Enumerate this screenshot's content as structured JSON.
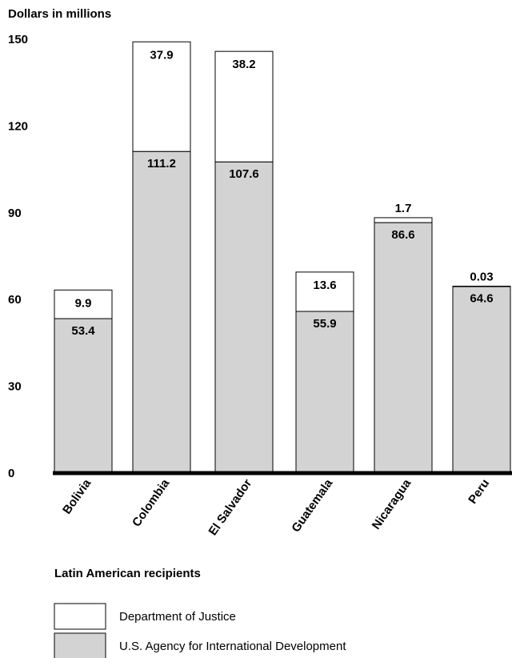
{
  "chart_data": {
    "type": "bar",
    "stacked": true,
    "ylabel": "Dollars in millions",
    "xlabel": "Latin American recipients",
    "ylim": [
      0,
      150
    ],
    "yticks": [
      0,
      30,
      60,
      90,
      120,
      150
    ],
    "categories": [
      "Bolivia",
      "Colombia",
      "El Salvador",
      "Guatemala",
      "Nicaragua",
      "Peru"
    ],
    "series": [
      {
        "name": "U.S. Agency for International Development",
        "color": "#d3d3d3",
        "values": [
          53.4,
          111.2,
          107.6,
          55.9,
          86.6,
          64.6
        ],
        "labels": [
          "53.4",
          "111.2",
          "107.6",
          "55.9",
          "86.6",
          "64.6"
        ]
      },
      {
        "name": "Department of Justice",
        "color": "#ffffff",
        "values": [
          9.9,
          37.9,
          38.2,
          13.6,
          1.7,
          0.03
        ],
        "labels": [
          "9.9",
          "37.9",
          "38.2",
          "13.6",
          "1.7",
          "0.03"
        ]
      }
    ],
    "legend_placement": "bottom-left",
    "grid": false
  }
}
